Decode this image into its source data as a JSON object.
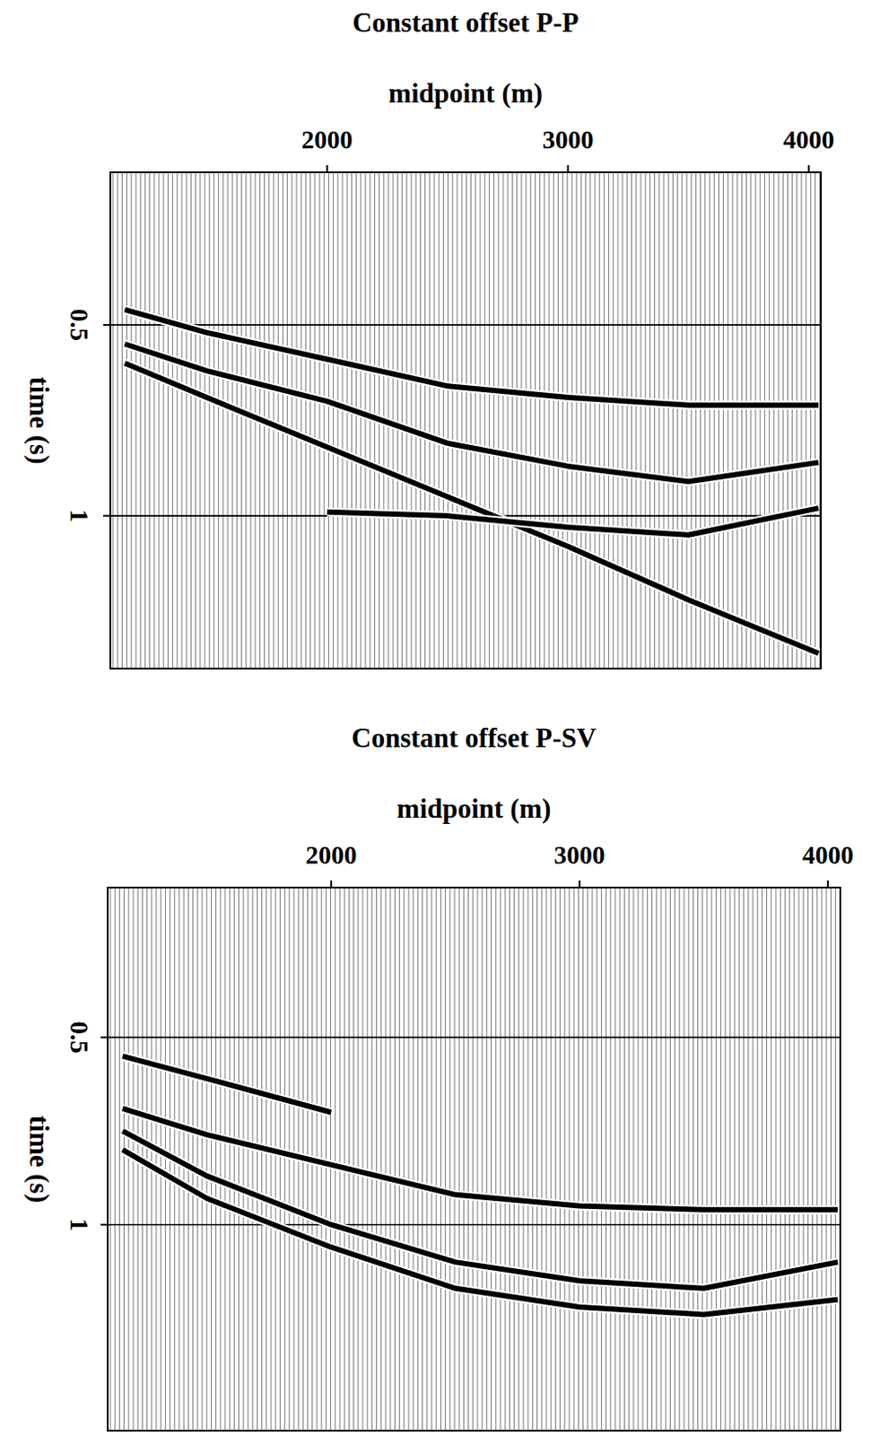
{
  "chart_data": [
    {
      "type": "line",
      "title": "Constant offset P-P",
      "x_label": "midpoint (m)",
      "y_label": "time (s)",
      "x": [
        1160,
        1500,
        2000,
        2500,
        3000,
        3500,
        4040
      ],
      "series": [
        {
          "color": "#000000",
          "values": [
            0.46,
            0.52,
            0.59,
            0.66,
            0.69,
            0.71,
            0.71
          ]
        },
        {
          "color": "#000000",
          "values": [
            0.55,
            0.62,
            0.7,
            0.81,
            0.87,
            0.91,
            0.86
          ]
        },
        {
          "color": "#000000",
          "values": [
            0.6,
            0.69,
            0.82,
            0.95,
            1.08,
            1.22,
            1.36
          ]
        },
        {
          "color": "#000000",
          "values": [
            null,
            null,
            0.99,
            1.0,
            1.03,
            1.05,
            0.98
          ]
        }
      ],
      "xlim": [
        1100,
        4050
      ],
      "xticks": [
        2000,
        3000,
        4000
      ],
      "ylim": [
        0.1,
        1.4
      ],
      "yticks": [
        0.5,
        1
      ],
      "grid": true
    },
    {
      "type": "line",
      "title": "Constant offset P-SV",
      "x_label": "midpoint (m)",
      "y_label": "time (s)",
      "x": [
        1160,
        1500,
        2000,
        2500,
        3000,
        3500,
        4040
      ],
      "series": [
        {
          "color": "#000000",
          "values": [
            0.55,
            0.61,
            0.7,
            null,
            null,
            null,
            null
          ]
        },
        {
          "color": "#000000",
          "values": [
            0.69,
            0.76,
            0.84,
            0.92,
            0.95,
            0.96,
            0.96
          ]
        },
        {
          "color": "#000000",
          "values": [
            0.75,
            0.87,
            1.0,
            1.1,
            1.15,
            1.17,
            1.1
          ]
        },
        {
          "color": "#000000",
          "values": [
            0.8,
            0.93,
            1.06,
            1.17,
            1.22,
            1.24,
            1.2
          ]
        }
      ],
      "xlim": [
        1100,
        4050
      ],
      "xticks": [
        2000,
        3000,
        4000
      ],
      "ylim": [
        0.1,
        1.55
      ],
      "yticks": [
        0.5,
        1
      ],
      "grid": true
    }
  ]
}
